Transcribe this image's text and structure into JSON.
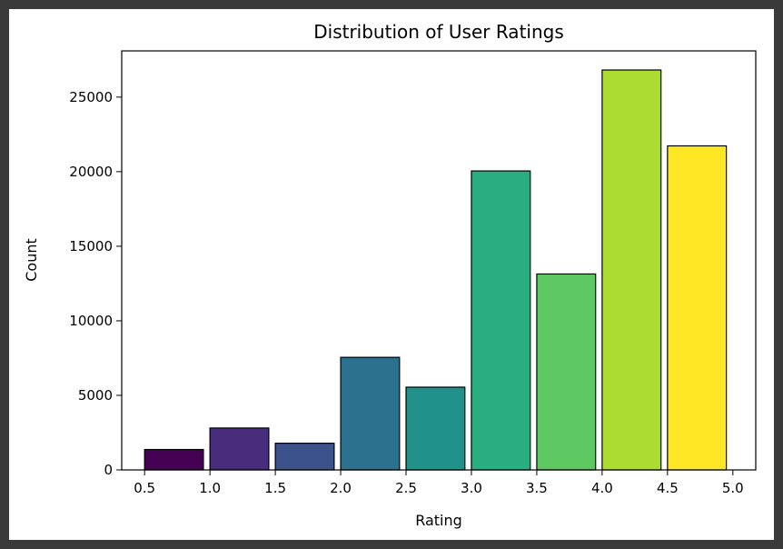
{
  "chart_data": {
    "type": "bar",
    "title": "Distribution of User Ratings",
    "xlabel": "Rating",
    "ylabel": "Count",
    "xlim": [
      0.325,
      5.175
    ],
    "ylim": [
      0,
      28100
    ],
    "xticks": [
      0.5,
      1.0,
      1.5,
      2.0,
      2.5,
      3.0,
      3.5,
      4.0,
      4.5,
      5.0
    ],
    "xtick_labels": [
      "0.5",
      "1.0",
      "1.5",
      "2.0",
      "2.5",
      "3.0",
      "3.5",
      "4.0",
      "4.5",
      "5.0"
    ],
    "yticks": [
      0,
      5000,
      10000,
      15000,
      20000,
      25000
    ],
    "ytick_labels": [
      "0",
      "5000",
      "10000",
      "15000",
      "20000",
      "25000"
    ],
    "grid": false,
    "bins": [
      {
        "start": 0.5,
        "end": 0.95,
        "value": 1370,
        "color": "#440154"
      },
      {
        "start": 1.0,
        "end": 1.45,
        "value": 2810,
        "color": "#472d7b"
      },
      {
        "start": 1.5,
        "end": 1.95,
        "value": 1790,
        "color": "#3b528b"
      },
      {
        "start": 2.0,
        "end": 2.45,
        "value": 7550,
        "color": "#2c728e"
      },
      {
        "start": 2.5,
        "end": 2.95,
        "value": 5550,
        "color": "#21918c"
      },
      {
        "start": 3.0,
        "end": 3.45,
        "value": 20050,
        "color": "#28ae80"
      },
      {
        "start": 3.5,
        "end": 3.95,
        "value": 13140,
        "color": "#5ec962"
      },
      {
        "start": 4.0,
        "end": 4.45,
        "value": 26820,
        "color": "#addc30"
      },
      {
        "start": 4.5,
        "end": 4.95,
        "value": 21730,
        "color": "#fde725"
      }
    ]
  }
}
